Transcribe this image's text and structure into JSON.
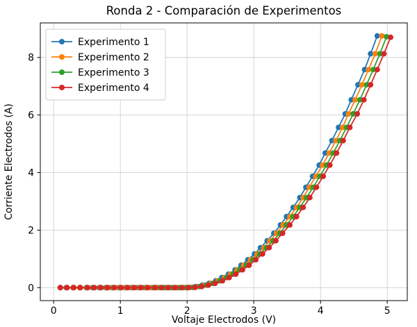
{
  "chart_data": {
    "type": "line",
    "title": "Ronda 2 - Comparación de Experimentos",
    "xlabel": "Voltaje Electrodos (V)",
    "ylabel": "Corriente Electrodos (A)",
    "xlim": [
      -0.2,
      5.3
    ],
    "ylim": [
      -0.45,
      9.2
    ],
    "x_ticks": [
      0,
      1,
      2,
      3,
      4,
      5
    ],
    "y_ticks": [
      0,
      2,
      4,
      6,
      8
    ],
    "grid": true,
    "legend_position": "upper-left",
    "marker": "circle",
    "colors": {
      "grid": "#cfcfcf",
      "spine": "#000000",
      "legend_border": "#cccccc",
      "background": "#ffffff"
    },
    "series": [
      {
        "name": "Experimento 1",
        "color": "#1f77b4",
        "x": [
          0.1,
          0.19,
          0.29,
          0.39,
          0.49,
          0.58,
          0.68,
          0.78,
          0.87,
          0.97,
          1.07,
          1.16,
          1.26,
          1.36,
          1.46,
          1.55,
          1.65,
          1.75,
          1.84,
          1.94,
          2.04,
          2.13,
          2.23,
          2.33,
          2.43,
          2.52,
          2.62,
          2.72,
          2.81,
          2.91,
          3.01,
          3.1,
          3.2,
          3.3,
          3.4,
          3.49,
          3.59,
          3.69,
          3.78,
          3.88,
          3.98,
          4.07,
          4.17,
          4.27,
          4.37,
          4.46,
          4.56,
          4.66,
          4.75,
          4.85
        ],
        "y": [
          0,
          0,
          0,
          0,
          0,
          0,
          0,
          0,
          0,
          0,
          0,
          0,
          0,
          0,
          0,
          0,
          0,
          0,
          0,
          0,
          0.01,
          0.04,
          0.09,
          0.15,
          0.24,
          0.35,
          0.47,
          0.62,
          0.78,
          0.97,
          1.17,
          1.39,
          1.63,
          1.89,
          2.18,
          2.47,
          2.79,
          3.13,
          3.49,
          3.87,
          4.26,
          4.68,
          5.11,
          5.57,
          6.04,
          6.53,
          7.05,
          7.58,
          8.13,
          8.75
        ]
      },
      {
        "name": "Experimento 2",
        "color": "#ff7f0e",
        "x": [
          0.1,
          0.2,
          0.29,
          0.39,
          0.49,
          0.59,
          0.69,
          0.79,
          0.88,
          0.98,
          1.08,
          1.18,
          1.28,
          1.38,
          1.47,
          1.57,
          1.67,
          1.77,
          1.87,
          1.97,
          2.06,
          2.16,
          2.26,
          2.36,
          2.46,
          2.56,
          2.65,
          2.75,
          2.85,
          2.95,
          3.05,
          3.15,
          3.24,
          3.34,
          3.44,
          3.54,
          3.64,
          3.74,
          3.83,
          3.93,
          4.03,
          4.13,
          4.23,
          4.33,
          4.42,
          4.52,
          4.62,
          4.72,
          4.82,
          4.92
        ],
        "y": [
          0,
          0,
          0,
          0,
          0,
          0,
          0,
          0,
          0,
          0,
          0,
          0,
          0,
          0,
          0,
          0,
          0,
          0,
          0,
          0,
          0.01,
          0.04,
          0.09,
          0.15,
          0.24,
          0.35,
          0.47,
          0.62,
          0.78,
          0.97,
          1.17,
          1.39,
          1.63,
          1.89,
          2.18,
          2.47,
          2.79,
          3.13,
          3.49,
          3.87,
          4.26,
          4.68,
          5.11,
          5.57,
          6.04,
          6.53,
          7.05,
          7.58,
          8.13,
          8.75
        ]
      },
      {
        "name": "Experimento 3",
        "color": "#2ca02c",
        "x": [
          0.1,
          0.2,
          0.3,
          0.4,
          0.5,
          0.6,
          0.7,
          0.8,
          0.9,
          1.0,
          1.1,
          1.2,
          1.3,
          1.4,
          1.5,
          1.6,
          1.69,
          1.79,
          1.89,
          1.99,
          2.09,
          2.19,
          2.29,
          2.39,
          2.49,
          2.59,
          2.69,
          2.79,
          2.89,
          2.99,
          3.09,
          3.19,
          3.29,
          3.39,
          3.49,
          3.59,
          3.69,
          3.79,
          3.89,
          3.99,
          4.09,
          4.19,
          4.29,
          4.39,
          4.49,
          4.59,
          4.69,
          4.79,
          4.89,
          4.99
        ],
        "y": [
          0,
          0,
          0,
          0,
          0,
          0,
          0,
          0,
          0,
          0,
          0,
          0,
          0,
          0,
          0,
          0,
          0,
          0,
          0,
          0,
          0.01,
          0.04,
          0.09,
          0.15,
          0.24,
          0.35,
          0.47,
          0.62,
          0.78,
          0.97,
          1.17,
          1.39,
          1.63,
          1.89,
          2.18,
          2.47,
          2.79,
          3.13,
          3.49,
          3.87,
          4.26,
          4.68,
          5.11,
          5.57,
          6.04,
          6.53,
          7.05,
          7.58,
          8.13,
          8.72
        ]
      },
      {
        "name": "Experimento 4",
        "color": "#d62728",
        "x": [
          0.1,
          0.2,
          0.3,
          0.4,
          0.51,
          0.61,
          0.71,
          0.81,
          0.91,
          1.01,
          1.11,
          1.21,
          1.31,
          1.41,
          1.52,
          1.62,
          1.72,
          1.82,
          1.92,
          2.02,
          2.12,
          2.22,
          2.32,
          2.42,
          2.53,
          2.63,
          2.73,
          2.83,
          2.93,
          3.03,
          3.13,
          3.23,
          3.33,
          3.43,
          3.54,
          3.64,
          3.74,
          3.84,
          3.94,
          4.04,
          4.14,
          4.24,
          4.34,
          4.44,
          4.55,
          4.65,
          4.75,
          4.85,
          4.95,
          5.05
        ],
        "y": [
          0,
          0,
          0,
          0,
          0,
          0,
          0,
          0,
          0,
          0,
          0,
          0,
          0,
          0,
          0,
          0,
          0,
          0,
          0,
          0,
          0.01,
          0.04,
          0.09,
          0.15,
          0.24,
          0.35,
          0.47,
          0.62,
          0.78,
          0.97,
          1.17,
          1.39,
          1.63,
          1.89,
          2.18,
          2.47,
          2.79,
          3.13,
          3.49,
          3.87,
          4.26,
          4.68,
          5.11,
          5.57,
          6.04,
          6.53,
          7.05,
          7.58,
          8.13,
          8.7
        ]
      }
    ]
  }
}
